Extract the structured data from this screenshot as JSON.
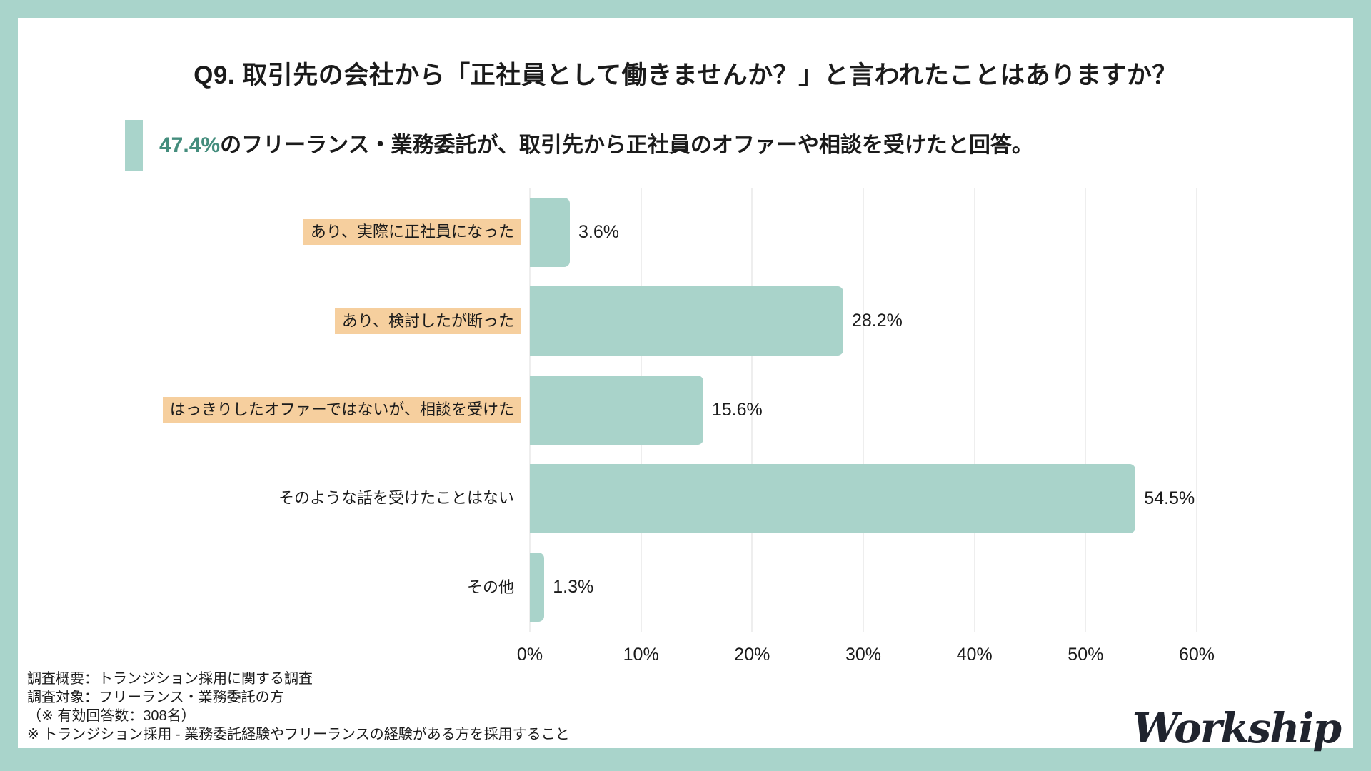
{
  "page": {
    "title": "Q9. 取引先の会社から「正社員として働きませんか？」と言われたことはありますか？",
    "subtitle": {
      "highlight": "47.4%",
      "rest": "のフリーランス・業務委託が、取引先から正社員のオファーや相談を受けたと回答。"
    }
  },
  "colors": {
    "bg_teal": "#a9d4cb",
    "bar_teal": "#a9d3ca",
    "label_highlight": "#f6cf9e",
    "accent_text": "#448d7d",
    "gridline": "#dcdcdc",
    "text_color": "#1b1b1b",
    "logo_color": "#20242e"
  },
  "chart_data": {
    "type": "bar",
    "orientation": "horizontal",
    "title": "Q9. 取引先の会社から「正社員として働きませんか？」と言われたことはありますか？",
    "categories": [
      "あり、実際に正社員になった",
      "あり、検討したが断った",
      "はっきりしたオファーではないが、相談を受けた",
      "そのような話を受けたことはない",
      "その他"
    ],
    "values": [
      3.6,
      28.2,
      15.6,
      54.5,
      1.3
    ],
    "value_labels": [
      "3.6%",
      "28.2%",
      "15.6%",
      "54.5%",
      "1.3%"
    ],
    "highlighted_categories": [
      true,
      true,
      true,
      false,
      false
    ],
    "xlim": [
      0,
      60
    ],
    "x_ticks": [
      "0%",
      "10%",
      "20%",
      "30%",
      "40%",
      "50%",
      "60%"
    ],
    "grid": true,
    "legend": "none"
  },
  "footer": {
    "lines": [
      "調査概要：トランジション採用に関する調査",
      "調査対象：フリーランス・業務委託の方",
      "（※ 有効回答数：308名）",
      "※ トランジション採用 - 業務委託経験やフリーランスの経験がある方を採用すること"
    ],
    "logo": "Workship"
  }
}
